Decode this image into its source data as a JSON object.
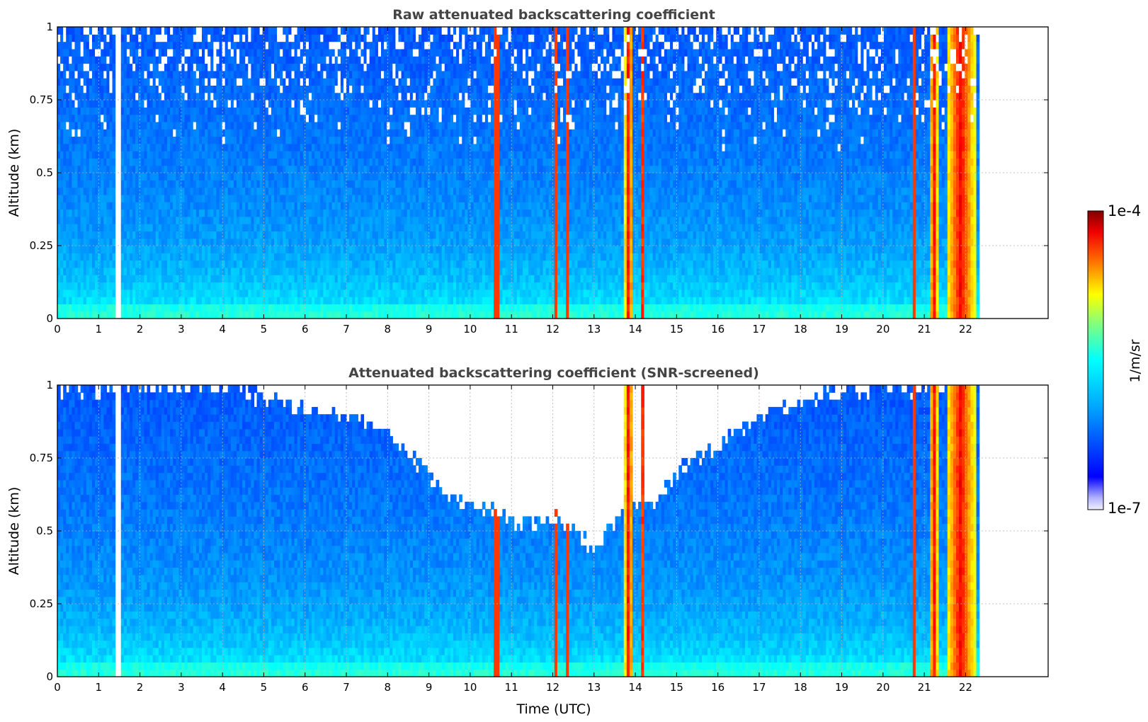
{
  "chart_data": [
    {
      "type": "heatmap",
      "title": "Raw attenuated backscattering coefficient",
      "xlabel": "",
      "ylabel": "Altitude (km)",
      "xlim": [
        0,
        24
      ],
      "ylim": [
        0,
        1
      ],
      "x_ticks": [
        "0",
        "1",
        "2",
        "3",
        "4",
        "5",
        "6",
        "7",
        "8",
        "9",
        "10",
        "11",
        "12",
        "13",
        "14",
        "15",
        "16",
        "17",
        "18",
        "19",
        "20",
        "21",
        "22"
      ],
      "y_ticks": [
        "0",
        "0.25",
        "0.5",
        "0.75",
        "1"
      ],
      "grid": true,
      "data_end_hour": 22.3,
      "gaps_hours": [
        [
          1.43,
          1.53
        ]
      ],
      "screened": false,
      "noise_cutoff_km": []
    },
    {
      "type": "heatmap",
      "title": "Attenuated backscattering coefficient (SNR-screened)",
      "xlabel": "Time (UTC)",
      "ylabel": "Altitude (km)",
      "xlim": [
        0,
        24
      ],
      "ylim": [
        0,
        1
      ],
      "x_ticks": [
        "0",
        "1",
        "2",
        "3",
        "4",
        "5",
        "6",
        "7",
        "8",
        "9",
        "10",
        "11",
        "12",
        "13",
        "14",
        "15",
        "16",
        "17",
        "18",
        "19",
        "20",
        "21",
        "22"
      ],
      "y_ticks": [
        "0",
        "0.25",
        "0.5",
        "0.75",
        "1"
      ],
      "grid": true,
      "data_end_hour": 22.3,
      "gaps_hours": [
        [
          1.43,
          1.53
        ]
      ],
      "screened": true,
      "noise_cutoff_km": [
        [
          0,
          1.0
        ],
        [
          4,
          1.0
        ],
        [
          5.5,
          0.95
        ],
        [
          7,
          0.9
        ],
        [
          8,
          0.85
        ],
        [
          9,
          0.7
        ],
        [
          9.5,
          0.62
        ],
        [
          10.5,
          0.58
        ],
        [
          11,
          0.55
        ],
        [
          12,
          0.55
        ],
        [
          12.5,
          0.52
        ],
        [
          13,
          0.44
        ],
        [
          13.5,
          0.55
        ],
        [
          14,
          0.6
        ],
        [
          14.5,
          0.62
        ],
        [
          15,
          0.72
        ],
        [
          16,
          0.82
        ],
        [
          17,
          0.9
        ],
        [
          18,
          0.95
        ],
        [
          19,
          1.0
        ],
        [
          22.3,
          1.0
        ]
      ]
    }
  ],
  "colorbar": {
    "label": "1/m/sr",
    "min_label": "1e-7",
    "max_label": "1e-4",
    "scale": "log",
    "colormap": "jet"
  },
  "features": {
    "background_level": 0.28,
    "thin_lines_hours": [
      10.55,
      10.65,
      12.05,
      12.3,
      20.75
    ],
    "aerosol_bands_hours": [
      [
        13.7,
        13.9
      ],
      [
        14.1,
        14.2
      ],
      [
        21.1,
        21.3
      ],
      [
        21.5,
        22.2
      ]
    ]
  }
}
